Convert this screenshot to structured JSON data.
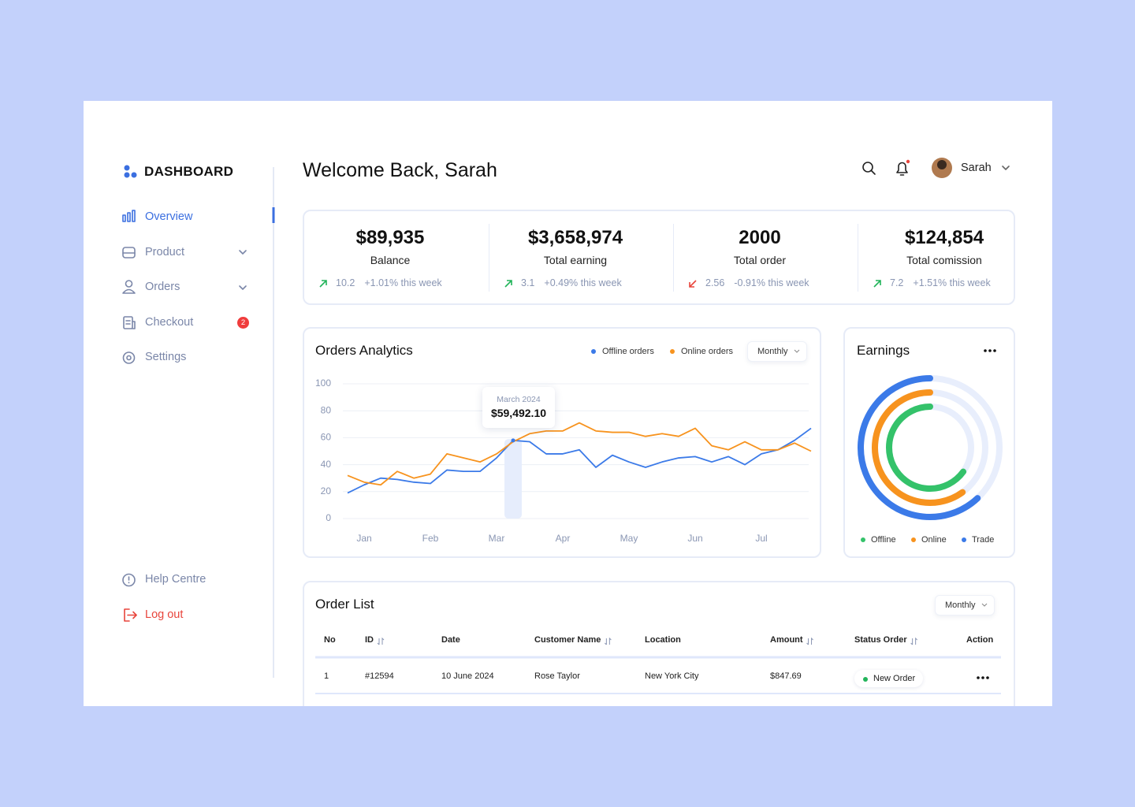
{
  "sidebar": {
    "logo": "DASHBOARD",
    "nav": [
      {
        "label": "Overview",
        "active": true
      },
      {
        "label": "Product",
        "expandable": true
      },
      {
        "label": "Orders",
        "expandable": true
      },
      {
        "label": "Checkout",
        "badge": "2"
      },
      {
        "label": "Settings"
      }
    ],
    "footer": [
      "Help Centre",
      "Log out"
    ]
  },
  "header": {
    "title": "Welcome Back, Sarah",
    "user": "Sarah"
  },
  "stats": [
    {
      "value": "$89,935",
      "label": "Balance",
      "change": "10.2",
      "delta": "+1.01% this week",
      "trend": "up"
    },
    {
      "value": "$3,658,974",
      "label": "Total earning",
      "change": "3.1",
      "delta": "+0.49% this week",
      "trend": "up"
    },
    {
      "value": "2000",
      "label": "Total order",
      "change": "2.56",
      "delta": "-0.91% this week",
      "trend": "down"
    },
    {
      "value": "$124,854",
      "label": "Total comission",
      "change": "7.2",
      "delta": "+1.51% this week",
      "trend": "up"
    }
  ],
  "chart_data": [
    {
      "type": "line",
      "title": "Orders Analytics",
      "filter": "Monthly",
      "categories": [
        null,
        "Jan",
        null,
        null,
        null,
        "Feb",
        null,
        null,
        null,
        "Mar",
        null,
        null,
        null,
        "Apr",
        null,
        null,
        null,
        "May",
        null,
        null,
        null,
        "Jun",
        null,
        null,
        null,
        "Jul",
        null,
        null,
        null
      ],
      "series": [
        {
          "name": "Offline orders",
          "color": "#3b7ae8",
          "values": [
            19,
            25,
            30,
            29,
            27,
            26,
            36,
            35,
            35,
            45,
            58,
            57,
            48,
            48,
            51,
            38,
            47,
            42,
            38,
            42,
            45,
            46,
            42,
            46,
            40,
            48,
            51,
            58,
            67
          ]
        },
        {
          "name": "Online orders",
          "color": "#f7931e",
          "values": [
            32,
            27,
            25,
            35,
            30,
            33,
            48,
            45,
            42,
            48,
            57,
            63,
            65,
            65,
            71,
            65,
            64,
            64,
            61,
            63,
            61,
            67,
            54,
            51,
            57,
            51,
            51,
            56,
            50
          ]
        }
      ],
      "ylim": [
        0,
        100
      ],
      "yticks": [
        0,
        20,
        40,
        60,
        80,
        100
      ],
      "grid": true,
      "annotation": {
        "title": "March 2024",
        "text": "$59,492.10"
      }
    },
    {
      "type": "donut",
      "title": "Earnings",
      "categories": [
        "Offline",
        "Online",
        "Trade"
      ],
      "values": [
        65,
        60,
        62
      ],
      "colors": [
        "#34c26a",
        "#f7931e",
        "#3b7ae8"
      ]
    }
  ],
  "orders": {
    "title": "Order List",
    "filter": "Monthly",
    "columns": [
      {
        "label": "No"
      },
      {
        "label": "ID",
        "sortable": true
      },
      {
        "label": "Date"
      },
      {
        "label": "Customer Name",
        "sortable": true
      },
      {
        "label": "Location"
      },
      {
        "label": "Amount",
        "sortable": true
      },
      {
        "label": "Status Order",
        "sortable": true
      },
      {
        "label": "Action"
      }
    ],
    "rows": [
      [
        "1",
        "#12594",
        "10 June 2024",
        "Rose Taylor",
        "New York City",
        "$847.69",
        "New Order"
      ]
    ]
  }
}
